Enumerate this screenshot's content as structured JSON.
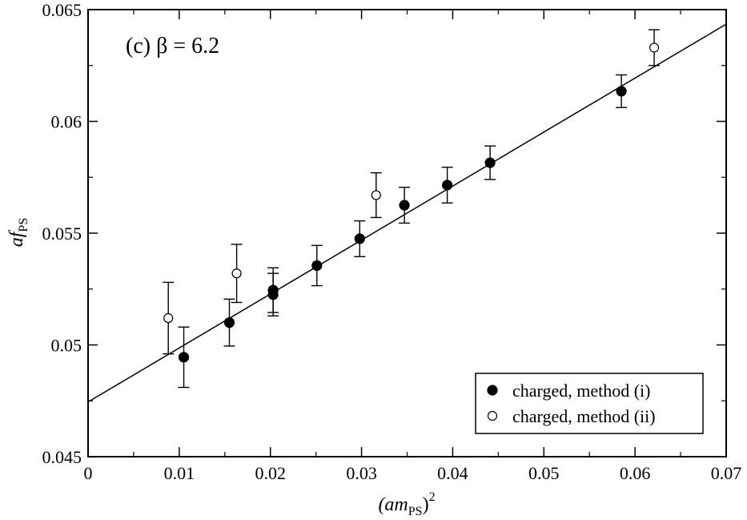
{
  "chart_data": {
    "type": "scatter",
    "xlabel_base": "(am",
    "xlabel_sub": "PS",
    "xlabel_close": ")",
    "xlabel_sup": "2",
    "ylabel_base": "af",
    "ylabel_sub": "PS",
    "annotation": "(c) β = 6.2",
    "xlim": [
      0,
      0.07
    ],
    "ylim": [
      0.045,
      0.065
    ],
    "xticks": [
      0,
      0.01,
      0.02,
      0.03,
      0.04,
      0.05,
      0.06,
      0.07
    ],
    "xtick_labels": [
      "0",
      "0.01",
      "0.02",
      "0.03",
      "0.04",
      "0.05",
      "0.06",
      "0.07"
    ],
    "yticks": [
      0.045,
      0.05,
      0.055,
      0.06,
      0.065
    ],
    "ytick_labels": [
      "0.045",
      "0.05",
      "0.055",
      "0.06",
      "0.065"
    ],
    "legend_position": "bottom-right",
    "series": [
      {
        "name": "charged, method (i)",
        "marker": "filled-circle",
        "points": [
          {
            "x": 0.0105,
            "y": 0.04945,
            "err": 0.00135
          },
          {
            "x": 0.0155,
            "y": 0.051,
            "err": 0.00105
          },
          {
            "x": 0.0203,
            "y": 0.05245,
            "err": 0.001
          },
          {
            "x": 0.0203,
            "y": 0.05225,
            "err": 0.00095
          },
          {
            "x": 0.0251,
            "y": 0.05355,
            "err": 0.0009
          },
          {
            "x": 0.0298,
            "y": 0.05475,
            "err": 0.0008
          },
          {
            "x": 0.0347,
            "y": 0.05625,
            "err": 0.0008
          },
          {
            "x": 0.0394,
            "y": 0.05715,
            "err": 0.0008
          },
          {
            "x": 0.0441,
            "y": 0.05815,
            "err": 0.00075
          },
          {
            "x": 0.0585,
            "y": 0.06135,
            "err": 0.00073
          }
        ]
      },
      {
        "name": "charged, method (ii)",
        "marker": "open-circle",
        "points": [
          {
            "x": 0.0088,
            "y": 0.0512,
            "err": 0.0016
          },
          {
            "x": 0.0163,
            "y": 0.0532,
            "err": 0.0013
          },
          {
            "x": 0.0316,
            "y": 0.0567,
            "err": 0.001
          },
          {
            "x": 0.0621,
            "y": 0.0633,
            "err": 0.0008
          }
        ]
      }
    ],
    "fit_line": {
      "x0": 0,
      "y0": 0.04745,
      "x1": 0.07,
      "y1": 0.06435
    }
  }
}
